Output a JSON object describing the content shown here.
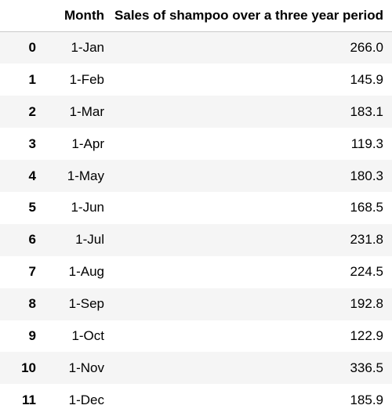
{
  "table": {
    "columns": {
      "index": "",
      "month": "Month",
      "sales": "Sales of shampoo over a three year period"
    },
    "rows": [
      {
        "index": "0",
        "month": "1-Jan",
        "sales": "266.0"
      },
      {
        "index": "1",
        "month": "1-Feb",
        "sales": "145.9"
      },
      {
        "index": "2",
        "month": "1-Mar",
        "sales": "183.1"
      },
      {
        "index": "3",
        "month": "1-Apr",
        "sales": "119.3"
      },
      {
        "index": "4",
        "month": "1-May",
        "sales": "180.3"
      },
      {
        "index": "5",
        "month": "1-Jun",
        "sales": "168.5"
      },
      {
        "index": "6",
        "month": "1-Jul",
        "sales": "231.8"
      },
      {
        "index": "7",
        "month": "1-Aug",
        "sales": "224.5"
      },
      {
        "index": "8",
        "month": "1-Sep",
        "sales": "192.8"
      },
      {
        "index": "9",
        "month": "1-Oct",
        "sales": "122.9"
      },
      {
        "index": "10",
        "month": "1-Nov",
        "sales": "336.5"
      },
      {
        "index": "11",
        "month": "1-Dec",
        "sales": "185.9"
      }
    ]
  }
}
